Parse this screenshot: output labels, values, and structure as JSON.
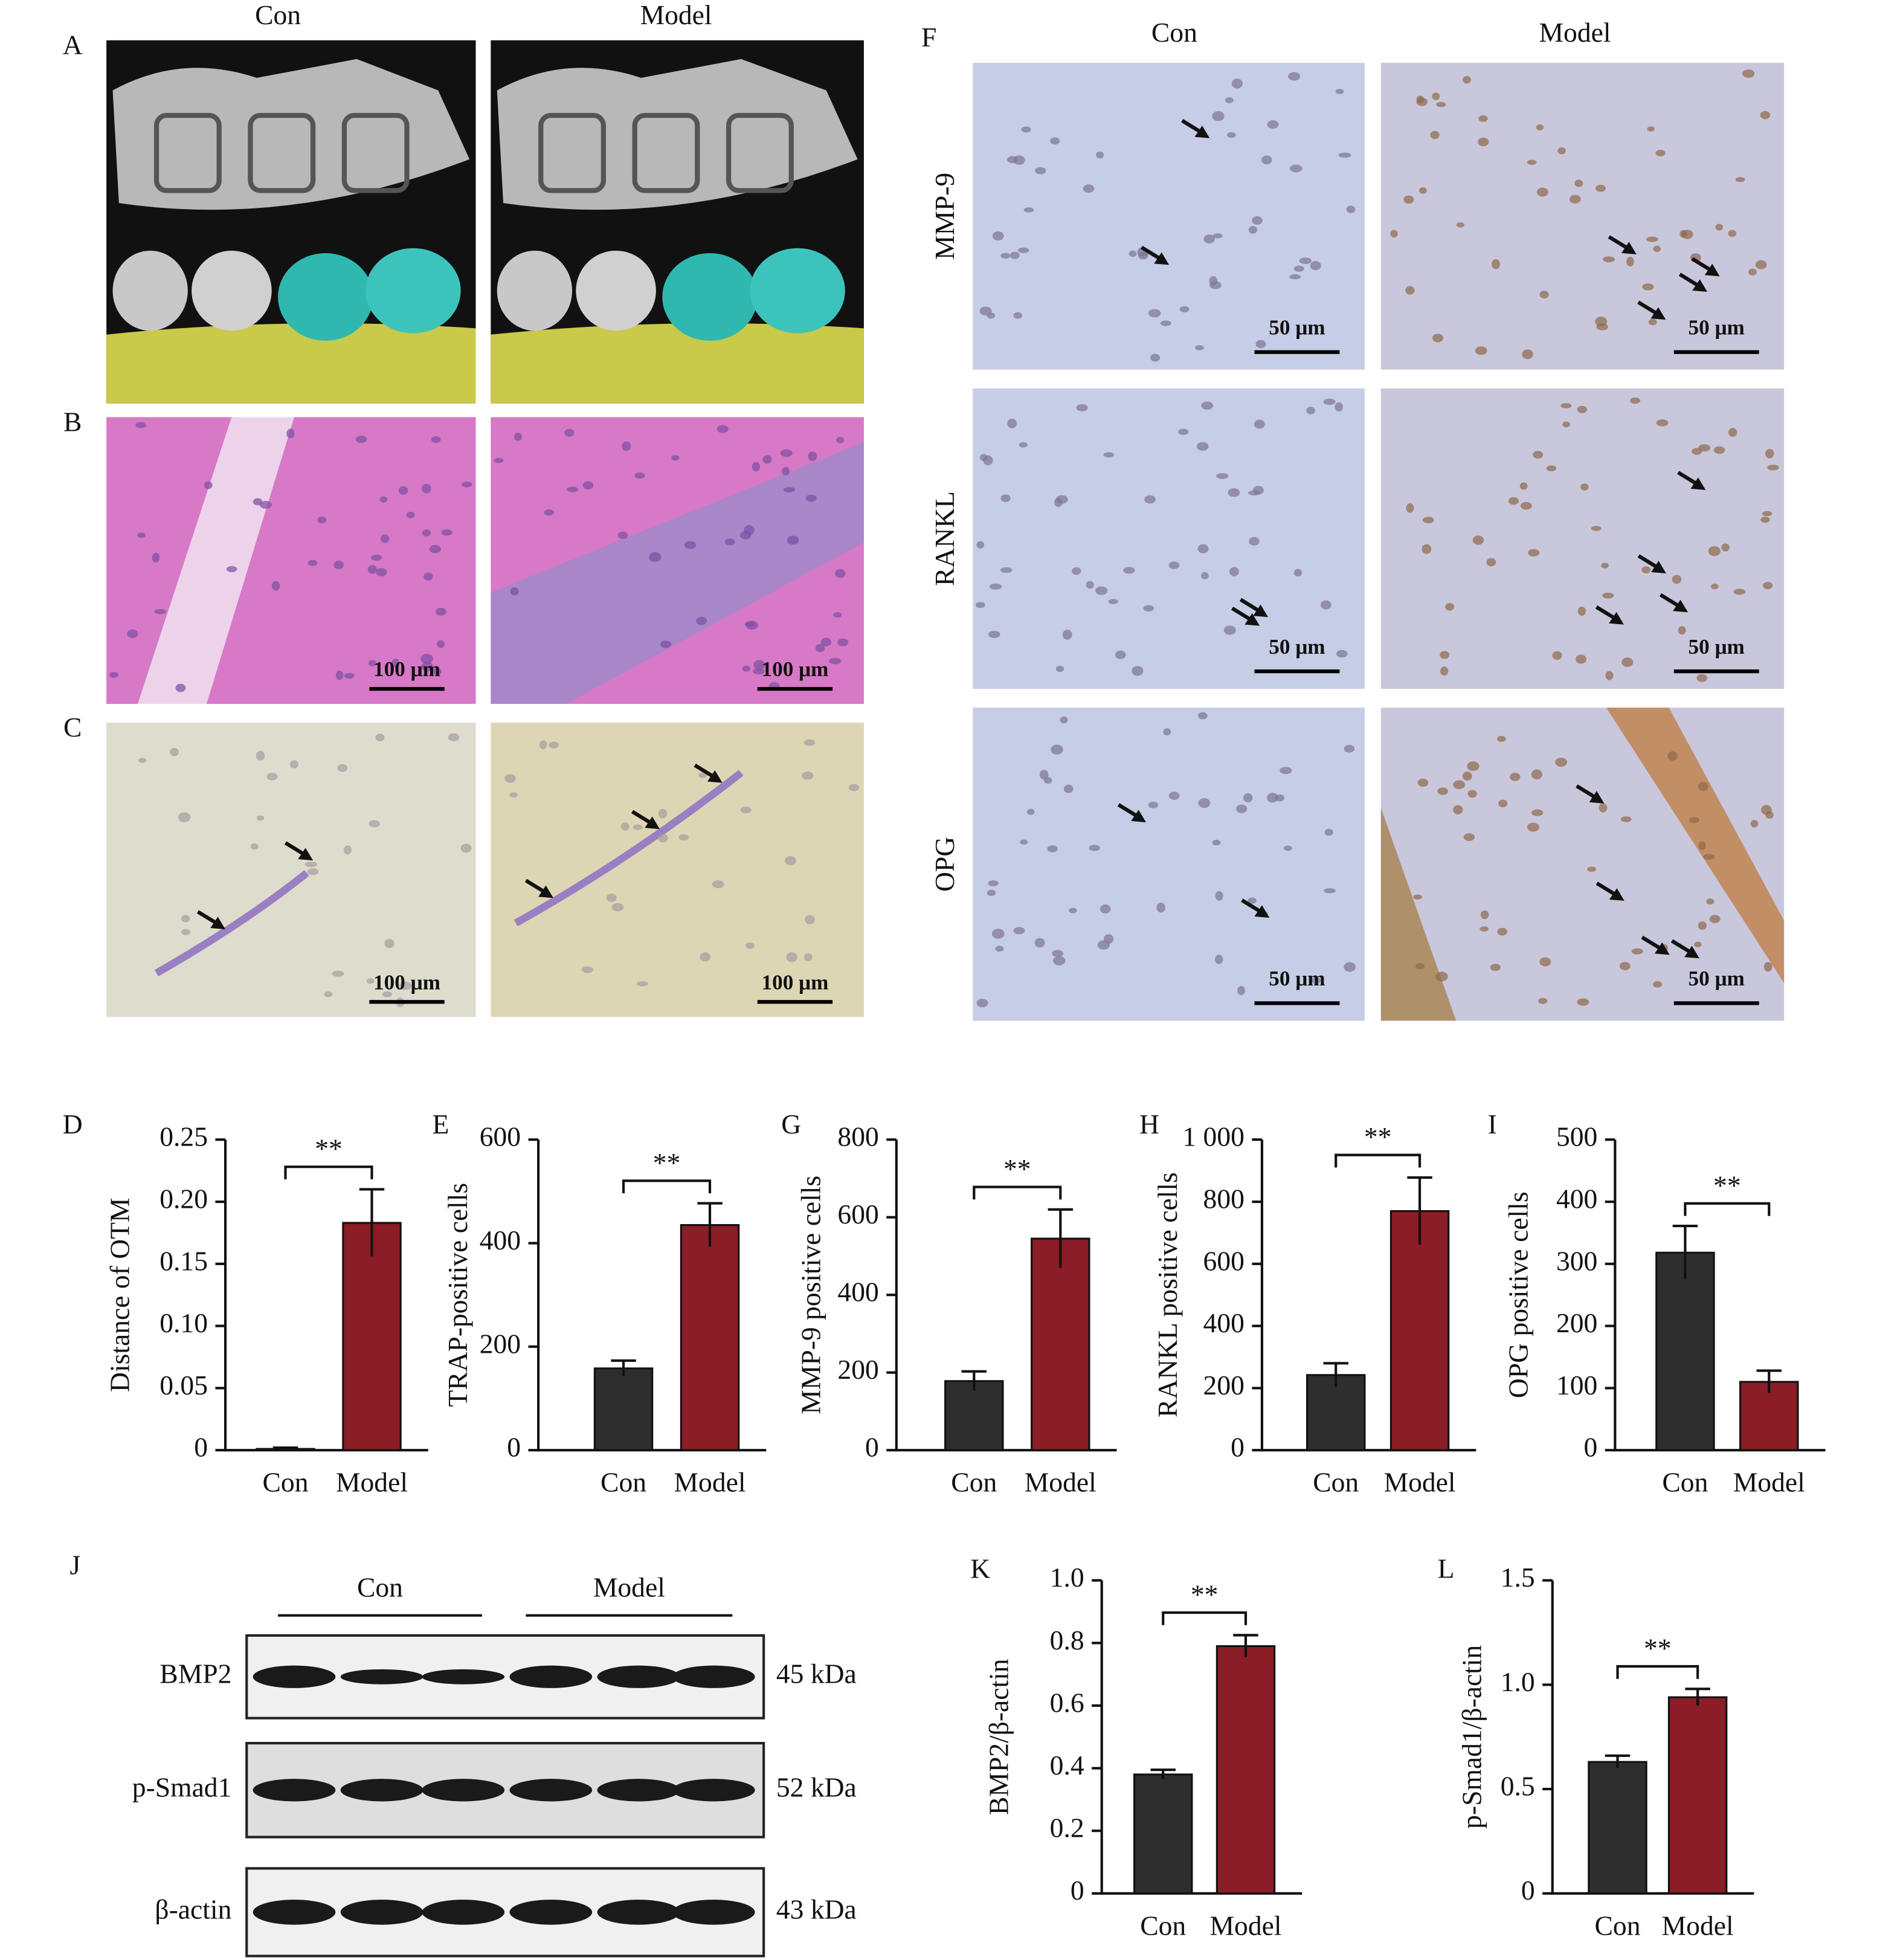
{
  "chart_data": [
    {
      "type": "bar",
      "panel": "D",
      "ylabel": "Distance of OTM",
      "categories": [
        "Con",
        "Model"
      ],
      "values": [
        0.001,
        0.183
      ],
      "errors": [
        0.001,
        0.027
      ],
      "colors": [
        "#2e2e2e",
        "#8a1d25"
      ],
      "ylim": [
        0,
        0.25
      ],
      "yticks": [
        0,
        0.05,
        {
          "value": 0.1,
          "label": "0.10"
        },
        0.15,
        {
          "value": 0.2,
          "label": "0.20"
        },
        0.25
      ],
      "significance": "**"
    },
    {
      "type": "bar",
      "panel": "E",
      "ylabel": "TRAP-positive cells",
      "categories": [
        "Con",
        "Model"
      ],
      "values": [
        158,
        435
      ],
      "errors": [
        15,
        42
      ],
      "colors": [
        "#2e2e2e",
        "#8a1d25"
      ],
      "ylim": [
        0,
        600
      ],
      "yticks": [
        0,
        200,
        400,
        600
      ],
      "significance": "**"
    },
    {
      "type": "bar",
      "panel": "G",
      "ylabel": "MMP-9 positive cells",
      "categories": [
        "Con",
        "Model"
      ],
      "values": [
        178,
        545
      ],
      "errors": [
        25,
        75
      ],
      "colors": [
        "#2e2e2e",
        "#8a1d25"
      ],
      "ylim": [
        0,
        800
      ],
      "yticks": [
        0,
        200,
        400,
        600,
        800
      ],
      "significance": "**"
    },
    {
      "type": "bar",
      "panel": "H",
      "ylabel": "RANKL positive cells",
      "categories": [
        "Con",
        "Model"
      ],
      "values": [
        242,
        770
      ],
      "errors": [
        38,
        108
      ],
      "colors": [
        "#2e2e2e",
        "#8a1d25"
      ],
      "ylim": [
        0,
        1000
      ],
      "yticks": [
        0,
        200,
        400,
        600,
        800,
        {
          "value": 1000,
          "label": "1 000"
        }
      ],
      "significance": "**"
    },
    {
      "type": "bar",
      "panel": "I",
      "ylabel": "OPG positive cells",
      "categories": [
        "Con",
        "Model"
      ],
      "values": [
        318,
        110
      ],
      "errors": [
        43,
        18
      ],
      "colors": [
        "#2e2e2e",
        "#8a1d25"
      ],
      "ylim": [
        0,
        500
      ],
      "yticks": [
        0,
        100,
        200,
        300,
        400,
        500
      ],
      "significance": "**"
    },
    {
      "type": "bar",
      "panel": "K",
      "ylabel": "BMP2/β-actin",
      "categories": [
        "Con",
        "Model"
      ],
      "values": [
        0.38,
        0.79
      ],
      "errors": [
        0.015,
        0.035
      ],
      "colors": [
        "#2e2e2e",
        "#8a1d25"
      ],
      "ylim": [
        0,
        1.0
      ],
      "yticks": [
        0,
        0.2,
        0.4,
        0.6,
        0.8,
        {
          "value": 1.0,
          "label": "1.0"
        }
      ],
      "significance": "**"
    },
    {
      "type": "bar",
      "panel": "L",
      "ylabel": "p-Smad1/β-actin",
      "categories": [
        "Con",
        "Model"
      ],
      "values": [
        0.63,
        0.94
      ],
      "errors": [
        0.03,
        0.04
      ],
      "colors": [
        "#2e2e2e",
        "#8a1d25"
      ],
      "ylim": [
        0,
        1.5
      ],
      "yticks": [
        0,
        0.5,
        {
          "value": 1.0,
          "label": "1.0"
        },
        1.5
      ],
      "significance": "**"
    }
  ],
  "imaging": {
    "letters": [
      "A",
      "B",
      "C"
    ],
    "columns": [
      "Con",
      "Model"
    ],
    "scale_bars": [
      "100 μm",
      "100 μm",
      "100 μm",
      "100 μm"
    ]
  },
  "ihc": {
    "letter": "F",
    "columns": [
      "Con",
      "Model"
    ],
    "rows": [
      "MMP-9",
      "RANKL",
      "OPG"
    ],
    "scale_bars": [
      "50 μm",
      "50 μm",
      "50 μm",
      "50 μm",
      "50 μm",
      "50 μm"
    ]
  },
  "blot": {
    "letter": "J",
    "groups": [
      "Con",
      "Model"
    ],
    "proteins": [
      {
        "name": "BMP2",
        "size": "45 kDa"
      },
      {
        "name": "p-Smad1",
        "size": "52 kDa"
      },
      {
        "name": "β-actin",
        "size": "43 kDa"
      }
    ]
  }
}
